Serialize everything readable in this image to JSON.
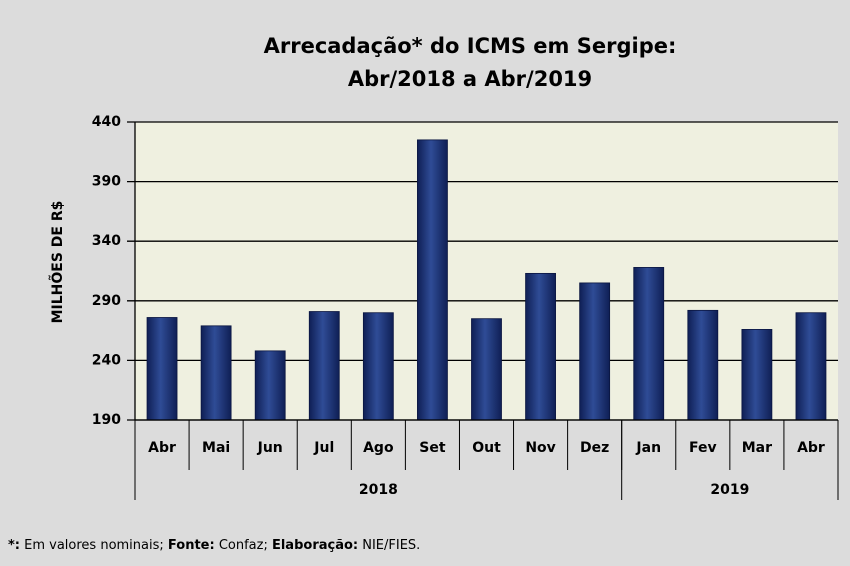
{
  "chart_data": {
    "type": "bar",
    "title": [
      "Arrecadação*  do ICMS em Sergipe:",
      "Abr/2018 a  Abr/2019"
    ],
    "y_label": "MILHÕES DE R$",
    "categories": [
      "Abr",
      "Mai",
      "Jun",
      "Jul",
      "Ago",
      "Set",
      "Out",
      "Nov",
      "Dez",
      "Jan",
      "Fev",
      "Mar",
      "Abr"
    ],
    "values": [
      276,
      269,
      248,
      281,
      280,
      425,
      275,
      313,
      305,
      318,
      282,
      266,
      280
    ],
    "color": "#1f3a7a",
    "groups": [
      {
        "label": "2018",
        "count": 9
      },
      {
        "label": "2019",
        "count": 4
      }
    ],
    "ylim": [
      190,
      440
    ],
    "yticks": [
      190,
      240,
      290,
      340,
      390,
      440
    ],
    "grid": true
  },
  "footnote": [
    {
      "text": "*:",
      "bold": true
    },
    {
      "text": " Em valores nominais; ",
      "bold": false
    },
    {
      "text": "Fonte:",
      "bold": true
    },
    {
      "text": " Confaz; ",
      "bold": false
    },
    {
      "text": "Elaboração:",
      "bold": true
    },
    {
      "text": " NIE/FIES.",
      "bold": false
    }
  ]
}
